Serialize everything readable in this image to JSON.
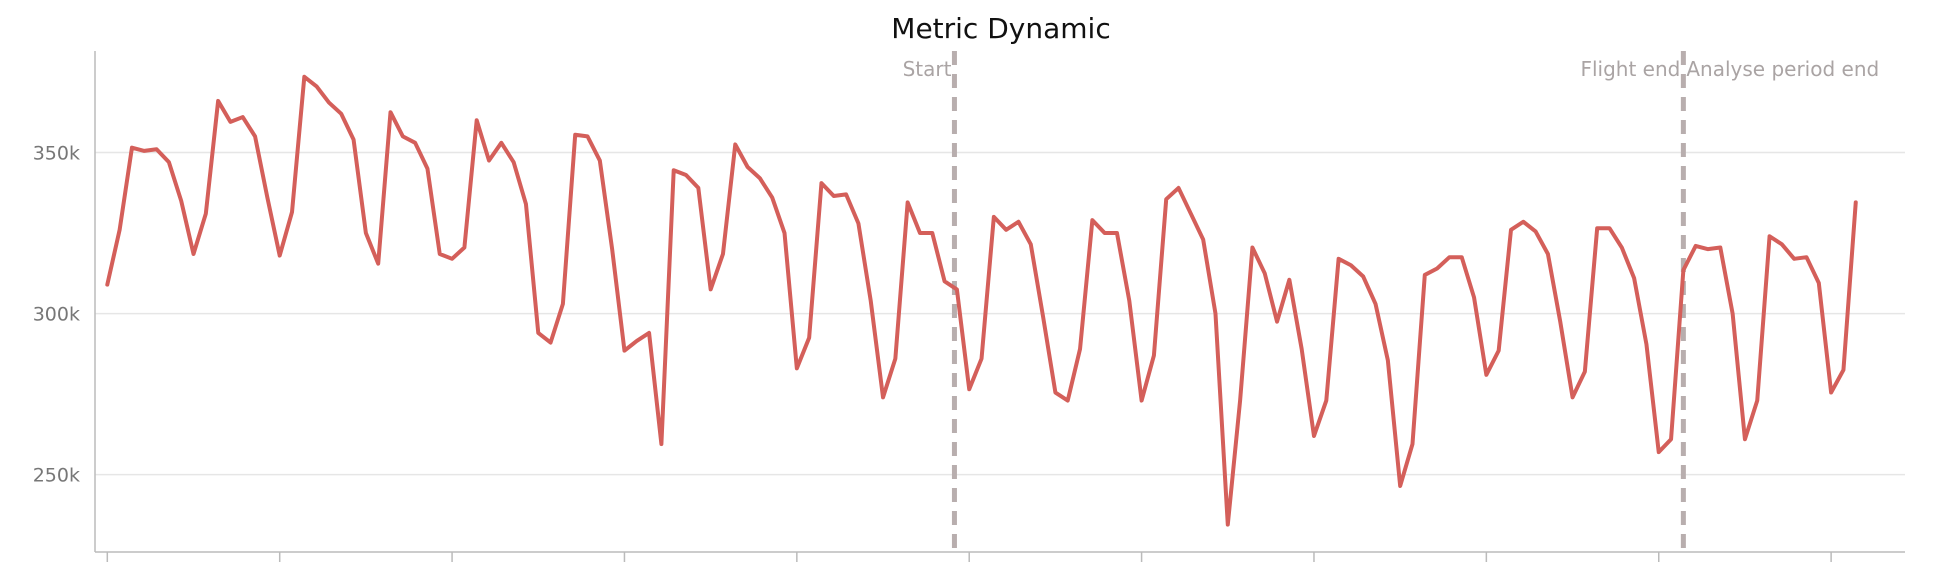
{
  "chart_data": {
    "type": "line",
    "title": "Metric Dynamic",
    "xlabel": "",
    "ylabel": "",
    "ylim": [
      226000,
      381500
    ],
    "xlim": [
      -1,
      146
    ],
    "grid": "horizontal",
    "legend": "none",
    "line_color": "#d45f5a",
    "marker_color": "#b8aeae",
    "y_ticks": [
      {
        "value": 250000,
        "label": "250k"
      },
      {
        "value": 300000,
        "label": "300k"
      },
      {
        "value": 350000,
        "label": "350k"
      }
    ],
    "x_ticks": [
      0,
      14,
      28,
      42,
      56,
      70,
      84,
      98,
      112,
      126,
      140
    ],
    "markers": [
      {
        "x": 68.8,
        "label": "Start",
        "anchor": "end"
      },
      {
        "x": 128.0,
        "label": "Flight end",
        "anchor": "end"
      },
      {
        "x": 128.0,
        "label": "Analyse period end",
        "anchor": "start"
      }
    ],
    "series": [
      {
        "values": [
          309000,
          326000,
          351500,
          350500,
          351000,
          347000,
          335000,
          318500,
          331000,
          366000,
          359500,
          361000,
          355000,
          336000,
          318000,
          331500,
          373500,
          370500,
          365500,
          362000,
          354000,
          325000,
          315500,
          362500,
          355000,
          353000,
          345000,
          318500,
          317000,
          320500,
          360000,
          347500,
          353000,
          347000,
          334000,
          294000,
          291000,
          303000,
          355500,
          355000,
          347500,
          320000,
          288500,
          291500,
          294000,
          259500,
          344500,
          343000,
          339000,
          307500,
          318500,
          352500,
          345500,
          342000,
          336000,
          325000,
          283000,
          292500,
          340500,
          336500,
          337000,
          328000,
          304000,
          274000,
          286000,
          334500,
          325000,
          325000,
          310000,
          307500,
          276500,
          286000,
          330000,
          326000,
          328500,
          321500,
          299000,
          275500,
          273000,
          289000,
          329000,
          325000,
          325000,
          304000,
          273000,
          287000,
          335500,
          339000,
          331000,
          323000,
          300000,
          234500,
          273000,
          320500,
          312500,
          297500,
          310500,
          289000,
          262000,
          273000,
          317000,
          315000,
          311500,
          303000,
          285500,
          246500,
          259500,
          312000,
          314000,
          317500,
          317500,
          305000,
          281000,
          288500,
          326000,
          328500,
          325500,
          318500,
          297500,
          274000,
          282000,
          326500,
          326500,
          320500,
          311000,
          290500,
          257000,
          261000,
          313500,
          321000,
          320000,
          320500,
          300000,
          261000,
          273000,
          324000,
          321500,
          317000,
          317500,
          309500,
          275500,
          282500,
          334500
        ]
      }
    ]
  }
}
